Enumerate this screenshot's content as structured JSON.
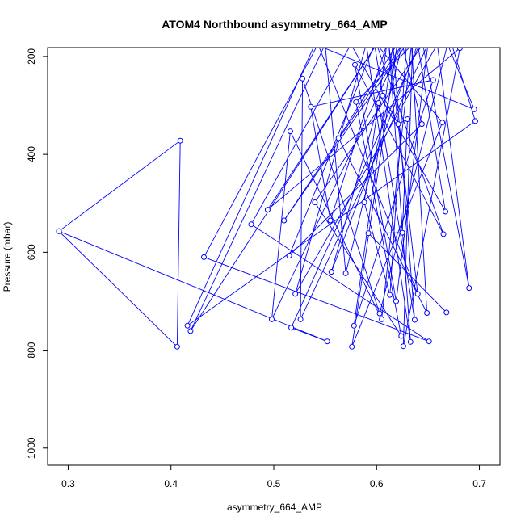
{
  "chart_data": {
    "type": "line",
    "title": "ATOM4 Northbound asymmetry_664_AMP",
    "xlabel": "asymmetry_664_AMP",
    "ylabel": "Pressure (mbar)",
    "xlim": [
      0.28,
      0.72
    ],
    "ylim": [
      1035,
      182
    ],
    "y_reversed": true,
    "x_ticks": [
      0.3,
      0.4,
      0.5,
      0.6,
      0.7
    ],
    "x_tick_labels": [
      "0.3",
      "0.4",
      "0.5",
      "0.6",
      "0.7"
    ],
    "y_ticks": [
      200,
      400,
      600,
      800,
      1000
    ],
    "y_tick_labels": [
      "200",
      "400",
      "600",
      "800",
      "1000"
    ],
    "grid": false,
    "legend": "none",
    "markers": "open-circle",
    "series": [
      {
        "color": "#0000ff",
        "points": [
          [
            0.291,
            557
          ],
          [
            0.409,
            372
          ],
          [
            0.406,
            793
          ],
          [
            0.291,
            557
          ],
          [
            0.552,
            782
          ],
          [
            0.517,
            754
          ],
          [
            0.642,
            175
          ],
          [
            0.673,
            175
          ],
          [
            0.696,
            332
          ],
          [
            0.416,
            750
          ],
          [
            0.54,
            175
          ],
          [
            0.695,
            308
          ],
          [
            0.669,
            175
          ],
          [
            0.603,
            725
          ],
          [
            0.528,
            245
          ],
          [
            0.526,
            737
          ],
          [
            0.65,
            175
          ],
          [
            0.619,
            700
          ],
          [
            0.579,
            217
          ],
          [
            0.665,
            563
          ],
          [
            0.6,
            175
          ],
          [
            0.664,
            335
          ],
          [
            0.576,
            793
          ],
          [
            0.62,
            175
          ],
          [
            0.563,
            367
          ],
          [
            0.649,
            724
          ],
          [
            0.634,
            175
          ],
          [
            0.605,
            737
          ],
          [
            0.516,
            353
          ],
          [
            0.498,
            737
          ],
          [
            0.625,
            175
          ],
          [
            0.57,
            643
          ],
          [
            0.55,
            175
          ],
          [
            0.419,
            761
          ],
          [
            0.6,
            175
          ],
          [
            0.494,
            513
          ],
          [
            0.681,
            183
          ],
          [
            0.626,
            792
          ],
          [
            0.635,
            175
          ],
          [
            0.58,
            293
          ],
          [
            0.624,
            771
          ],
          [
            0.54,
            498
          ],
          [
            0.645,
            175
          ],
          [
            0.69,
            673
          ],
          [
            0.659,
            175
          ],
          [
            0.521,
            685
          ],
          [
            0.59,
            175
          ],
          [
            0.633,
            783
          ],
          [
            0.612,
            175
          ],
          [
            0.64,
            685
          ],
          [
            0.543,
            175
          ],
          [
            0.432,
            610
          ],
          [
            0.651,
            782
          ],
          [
            0.478,
            543
          ],
          [
            0.575,
            175
          ],
          [
            0.667,
            517
          ],
          [
            0.64,
            175
          ],
          [
            0.556,
            640
          ],
          [
            0.602,
            295
          ],
          [
            0.637,
            738
          ],
          [
            0.616,
            175
          ],
          [
            0.578,
            750
          ],
          [
            0.655,
            248
          ],
          [
            0.536,
            303
          ],
          [
            0.555,
            535
          ],
          [
            0.61,
            175
          ],
          [
            0.588,
            498
          ],
          [
            0.613,
            687
          ],
          [
            0.629,
            175
          ],
          [
            0.51,
            535
          ],
          [
            0.625,
            175
          ],
          [
            0.644,
            338
          ],
          [
            0.515,
            607
          ],
          [
            0.598,
            175
          ],
          [
            0.606,
            280
          ],
          [
            0.621,
            338
          ],
          [
            0.63,
            328
          ],
          [
            0.625,
            560
          ],
          [
            0.592,
            561
          ],
          [
            0.668,
            723
          ]
        ]
      }
    ]
  }
}
